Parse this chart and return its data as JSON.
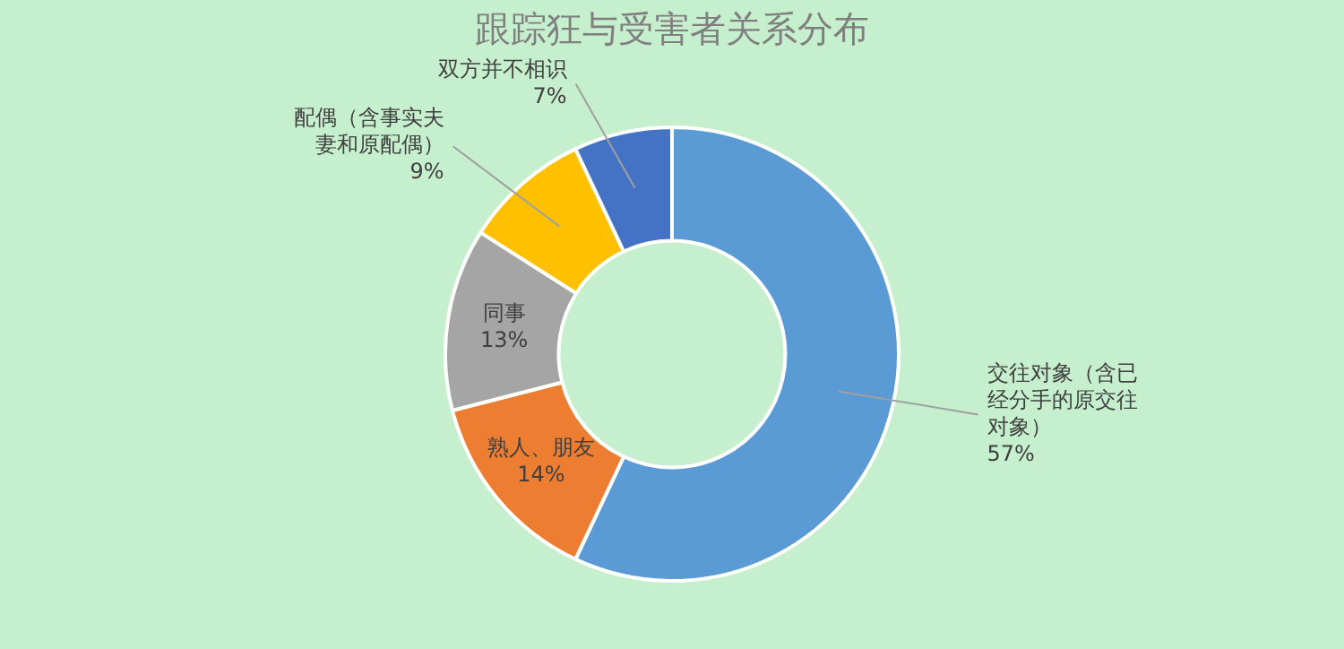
{
  "chart_data": {
    "type": "donut",
    "title": "跟踪狂与受害者关系分布",
    "categories": [
      "交往对象（含已经分手的原交往对象）",
      "熟人、朋友",
      "同事",
      "配偶（含事实夫妻和原配偶）",
      "双方并不相识"
    ],
    "values": [
      57,
      14,
      13,
      9,
      7
    ],
    "value_labels": [
      "57%",
      "14%",
      "13%",
      "9%",
      "7%"
    ],
    "colors": [
      "#5b9bd5",
      "#ed7d31",
      "#a5a5a5",
      "#ffc000",
      "#4472c4"
    ],
    "legend": false
  }
}
